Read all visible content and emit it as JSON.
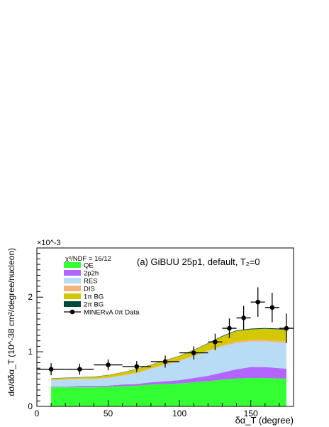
{
  "chart_data": {
    "type": "area",
    "xlabel": "δα_T (degree)",
    "ylabel": "dσ/dδα_T (10^-38 cm²/degree/nucleon)",
    "multiplier": "×10^-3",
    "xlim": [
      0,
      180
    ],
    "ylim": [
      0,
      0.0029
    ],
    "x_ticks": [
      "0",
      "50",
      "100",
      "150"
    ],
    "y_ticks": [
      "0",
      "1",
      "2"
    ],
    "annotation": "(a) GiBUU 25p1, default, T₂=0",
    "chi2_text": "χ²/NDF = 16/12",
    "legend_position": "top-left",
    "x": [
      10,
      20,
      30,
      40,
      50,
      60,
      70,
      80,
      90,
      100,
      110,
      120,
      130,
      140,
      150,
      160,
      170,
      175
    ],
    "stack_series": [
      {
        "name": "QE",
        "color": "#33ff33",
        "values": [
          0.00035,
          0.00035,
          0.00035,
          0.00035,
          0.00036,
          0.00037,
          0.00038,
          0.0004,
          0.00041,
          0.00042,
          0.00044,
          0.00046,
          0.00049,
          0.00051,
          0.00052,
          0.00052,
          0.00051,
          0.00051
        ]
      },
      {
        "name": "2p2h",
        "color": "#b366ff",
        "values": [
          1e-05,
          1e-05,
          2e-05,
          2e-05,
          2e-05,
          3e-05,
          3e-05,
          4e-05,
          5e-05,
          6e-05,
          8e-05,
          0.0001,
          0.00013,
          0.00017,
          0.0002,
          0.0002,
          0.00019,
          0.00018
        ]
      },
      {
        "name": "RES",
        "color": "#b8dcf5",
        "values": [
          0.00012,
          0.00013,
          0.00013,
          0.00013,
          0.00014,
          0.00016,
          0.0002,
          0.00025,
          0.0003,
          0.00035,
          0.0004,
          0.00045,
          0.00048,
          0.00048,
          0.00047,
          0.00047,
          0.00047,
          0.00047
        ]
      },
      {
        "name": "DIS",
        "color": "#f7b27a",
        "values": [
          1e-05,
          1e-05,
          1e-05,
          1e-05,
          1e-05,
          1e-05,
          1e-05,
          1e-05,
          1e-05,
          1e-05,
          1e-05,
          1e-05,
          2e-05,
          3e-05,
          3e-05,
          3e-05,
          3e-05,
          3e-05
        ]
      },
      {
        "name": "1π BG",
        "color": "#d4c800",
        "values": [
          2e-05,
          2e-05,
          2e-05,
          3e-05,
          4e-05,
          5e-05,
          6e-05,
          6e-05,
          7e-05,
          8e-05,
          0.0001,
          0.00013,
          0.00016,
          0.00019,
          0.00019,
          0.0002,
          0.00021,
          0.00021
        ]
      },
      {
        "name": "2π BG",
        "color": "#004b3a",
        "values": [
          5e-06,
          5e-06,
          5e-06,
          5e-06,
          5e-06,
          5e-06,
          5e-06,
          5e-06,
          5e-06,
          6e-06,
          7e-06,
          8e-06,
          1e-05,
          1.2e-05,
          1.4e-05,
          1.5e-05,
          1.5e-05,
          1.5e-05
        ]
      }
    ],
    "data_points": {
      "name": "MINERvA 0π Data",
      "points": [
        {
          "x": 10,
          "xerr": 10,
          "y": 0.00068,
          "yerr": 0.00011
        },
        {
          "x": 30,
          "xerr": 10,
          "y": 0.00068,
          "yerr": 0.0001
        },
        {
          "x": 50,
          "xerr": 10,
          "y": 0.00076,
          "yerr": 0.0001
        },
        {
          "x": 70,
          "xerr": 10,
          "y": 0.00073,
          "yerr": 0.0001
        },
        {
          "x": 90,
          "xerr": 10,
          "y": 0.00082,
          "yerr": 0.00011
        },
        {
          "x": 110,
          "xerr": 10,
          "y": 0.00098,
          "yerr": 0.00012
        },
        {
          "x": 125,
          "xerr": 5,
          "y": 0.00118,
          "yerr": 0.00015
        },
        {
          "x": 135,
          "xerr": 5,
          "y": 0.00143,
          "yerr": 0.00018
        },
        {
          "x": 145,
          "xerr": 5,
          "y": 0.00162,
          "yerr": 0.00022
        },
        {
          "x": 155,
          "xerr": 5,
          "y": 0.00191,
          "yerr": 0.00027
        },
        {
          "x": 165,
          "xerr": 5,
          "y": 0.00181,
          "yerr": 0.00027
        },
        {
          "x": 175,
          "xerr": 5,
          "y": 0.00143,
          "yerr": 0.00027
        }
      ]
    }
  }
}
